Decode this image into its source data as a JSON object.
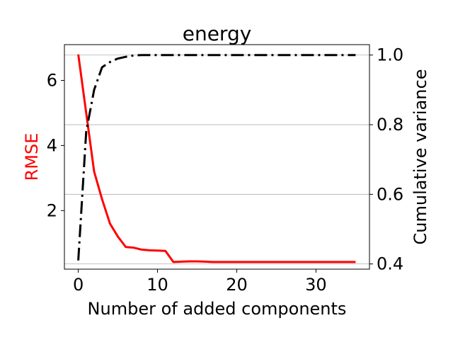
{
  "chart_data": {
    "type": "line",
    "title": "energy",
    "xlabel": "Number of added components",
    "ylabel_left": "RMSE",
    "ylabel_right": "Cumulative variance",
    "xlim": [
      -1.75,
      36.75
    ],
    "ylim_left": [
      0.2,
      7.1
    ],
    "ylim_right": [
      0.385,
      1.03
    ],
    "xticks": [
      0,
      10,
      20,
      30
    ],
    "yticks_left": [
      2,
      4,
      6
    ],
    "yticks_right": [
      0.4,
      0.6,
      0.8,
      1.0
    ],
    "ytick_labels_right": [
      "0.4",
      "0.6",
      "0.8",
      "1.0"
    ],
    "grid": "right-axis horizontal",
    "series": [
      {
        "axis": "left",
        "color": "#ff0000",
        "style": "solid",
        "x": [
          0,
          1,
          2,
          3,
          4,
          5,
          6,
          7,
          8,
          9,
          10,
          11,
          12,
          13,
          14,
          15,
          16,
          17,
          18,
          19,
          20,
          21,
          22,
          23,
          24,
          25,
          26,
          27,
          28,
          29,
          30,
          31,
          32,
          33,
          34,
          35
        ],
        "values": [
          6.8,
          5.0,
          3.2,
          2.35,
          1.6,
          1.2,
          0.88,
          0.86,
          0.8,
          0.78,
          0.77,
          0.76,
          0.42,
          0.43,
          0.44,
          0.44,
          0.43,
          0.42,
          0.42,
          0.42,
          0.42,
          0.42,
          0.42,
          0.42,
          0.42,
          0.42,
          0.42,
          0.42,
          0.42,
          0.42,
          0.42,
          0.42,
          0.42,
          0.42,
          0.42,
          0.42
        ]
      },
      {
        "axis": "right",
        "color": "#000000",
        "style": "dashdot",
        "x": [
          0,
          1,
          2,
          3,
          4,
          5,
          6,
          7,
          8,
          9,
          10,
          11,
          12,
          13,
          14,
          15,
          16,
          17,
          18,
          19,
          20,
          21,
          22,
          23,
          24,
          25,
          26,
          27,
          28,
          29,
          30,
          31,
          32,
          33,
          34,
          35
        ],
        "values": [
          0.41,
          0.78,
          0.9,
          0.965,
          0.98,
          0.99,
          0.995,
          0.999,
          1.0,
          1.0,
          1.0,
          1.0,
          1.0,
          1.0,
          1.0,
          1.0,
          1.0,
          1.0,
          1.0,
          1.0,
          1.0,
          1.0,
          1.0,
          1.0,
          1.0,
          1.0,
          1.0,
          1.0,
          1.0,
          1.0,
          1.0,
          1.0,
          1.0,
          1.0,
          1.0,
          1.0
        ]
      }
    ],
    "colors": {
      "rmse": "#ff0000",
      "variance": "#000000",
      "grid": "#b0b0b0"
    }
  }
}
